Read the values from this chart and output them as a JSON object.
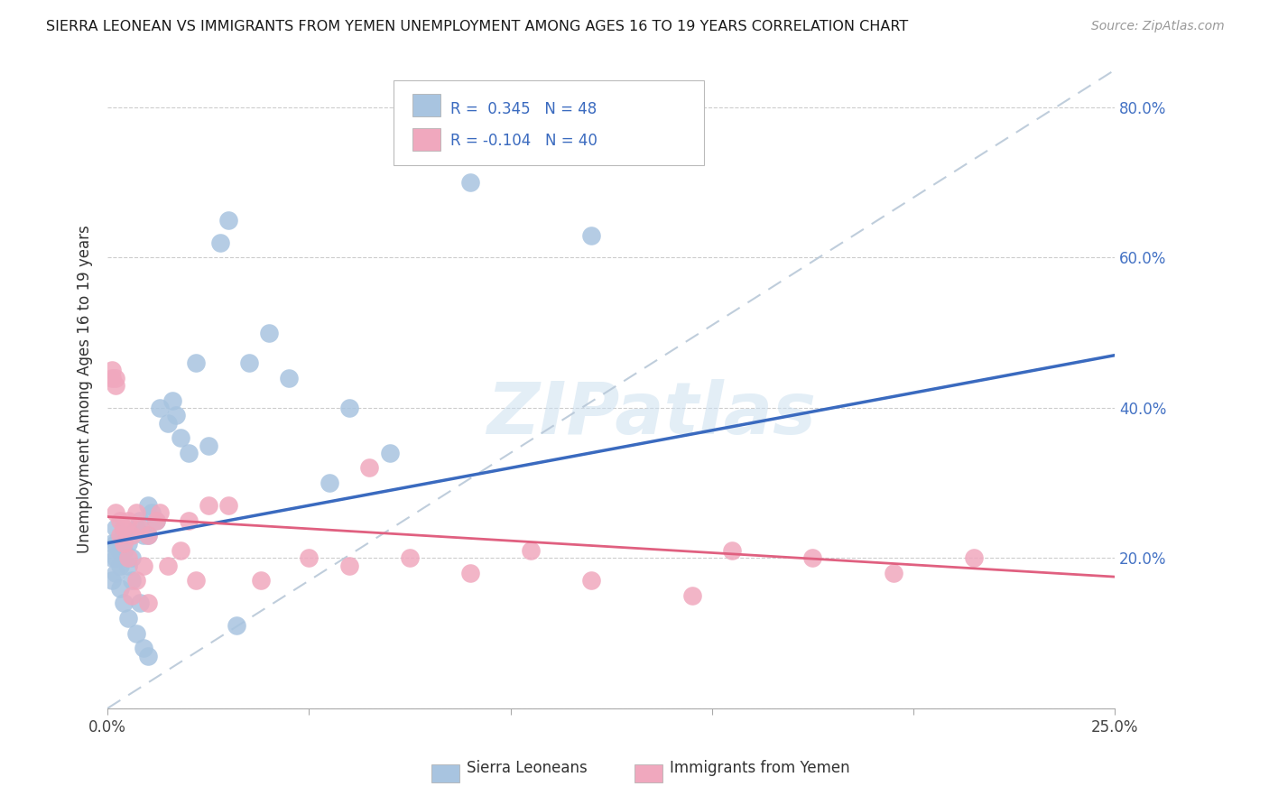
{
  "title": "SIERRA LEONEAN VS IMMIGRANTS FROM YEMEN UNEMPLOYMENT AMONG AGES 16 TO 19 YEARS CORRELATION CHART",
  "source": "Source: ZipAtlas.com",
  "ylabel": "Unemployment Among Ages 16 to 19 years",
  "xlim": [
    0.0,
    0.25
  ],
  "ylim": [
    0.0,
    0.85
  ],
  "watermark_text": "ZIPatlas",
  "blue_scatter_color": "#a8c4e0",
  "pink_scatter_color": "#f0a8be",
  "blue_line_color": "#3a6abf",
  "pink_line_color": "#e06080",
  "dashed_line_color": "#b8c8d8",
  "blue_line_x0": 0.0,
  "blue_line_y0": 0.22,
  "blue_line_x1": 0.25,
  "blue_line_y1": 0.47,
  "pink_line_x0": 0.0,
  "pink_line_y0": 0.255,
  "pink_line_x1": 0.25,
  "pink_line_y1": 0.175,
  "sl_x": [
    0.001,
    0.001,
    0.001,
    0.002,
    0.002,
    0.002,
    0.002,
    0.003,
    0.003,
    0.003,
    0.004,
    0.004,
    0.004,
    0.005,
    0.005,
    0.005,
    0.006,
    0.006,
    0.007,
    0.007,
    0.008,
    0.008,
    0.009,
    0.009,
    0.01,
    0.01,
    0.01,
    0.011,
    0.012,
    0.013,
    0.015,
    0.016,
    0.017,
    0.018,
    0.02,
    0.022,
    0.025,
    0.028,
    0.03,
    0.032,
    0.035,
    0.04,
    0.045,
    0.055,
    0.06,
    0.07,
    0.09,
    0.12
  ],
  "sl_y": [
    0.22,
    0.2,
    0.17,
    0.24,
    0.22,
    0.2,
    0.18,
    0.21,
    0.19,
    0.16,
    0.23,
    0.21,
    0.14,
    0.22,
    0.19,
    0.12,
    0.2,
    0.17,
    0.24,
    0.1,
    0.25,
    0.14,
    0.23,
    0.08,
    0.27,
    0.23,
    0.07,
    0.26,
    0.25,
    0.4,
    0.38,
    0.41,
    0.39,
    0.36,
    0.34,
    0.46,
    0.35,
    0.62,
    0.65,
    0.11,
    0.46,
    0.5,
    0.44,
    0.3,
    0.4,
    0.34,
    0.7,
    0.63
  ],
  "yi_x": [
    0.001,
    0.001,
    0.002,
    0.002,
    0.002,
    0.003,
    0.003,
    0.004,
    0.004,
    0.005,
    0.005,
    0.006,
    0.006,
    0.007,
    0.007,
    0.008,
    0.009,
    0.01,
    0.01,
    0.012,
    0.013,
    0.015,
    0.018,
    0.02,
    0.022,
    0.025,
    0.03,
    0.038,
    0.05,
    0.06,
    0.065,
    0.075,
    0.09,
    0.105,
    0.12,
    0.145,
    0.155,
    0.175,
    0.195,
    0.215
  ],
  "yi_y": [
    0.44,
    0.45,
    0.43,
    0.44,
    0.26,
    0.25,
    0.23,
    0.24,
    0.22,
    0.25,
    0.2,
    0.23,
    0.15,
    0.26,
    0.17,
    0.24,
    0.19,
    0.23,
    0.14,
    0.25,
    0.26,
    0.19,
    0.21,
    0.25,
    0.17,
    0.27,
    0.27,
    0.17,
    0.2,
    0.19,
    0.32,
    0.2,
    0.18,
    0.21,
    0.17,
    0.15,
    0.21,
    0.2,
    0.18,
    0.2
  ]
}
